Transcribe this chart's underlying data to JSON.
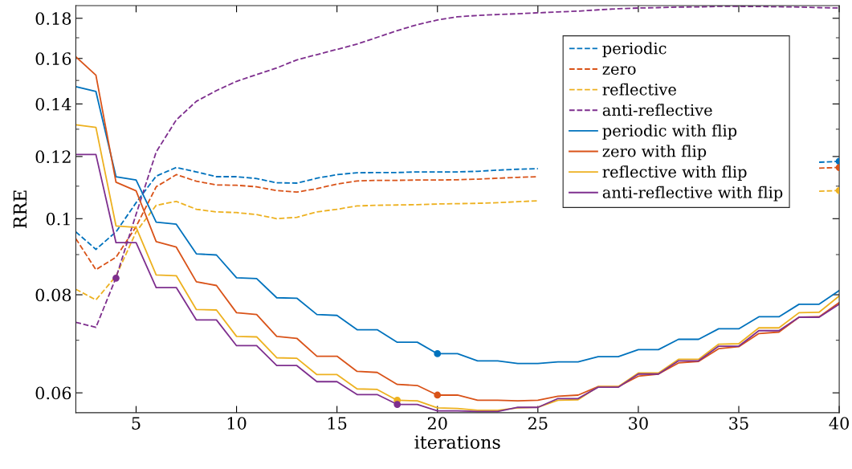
{
  "chart_data": {
    "type": "line",
    "xlabel": "iterations",
    "ylabel": "RRE",
    "log": "y",
    "x": [
      2,
      3,
      4,
      5,
      6,
      7,
      8,
      9,
      10,
      11,
      12,
      13,
      14,
      15,
      16,
      17,
      18,
      19,
      20,
      21,
      22,
      23,
      24,
      25,
      26,
      27,
      28,
      29,
      30,
      31,
      32,
      33,
      34,
      35,
      36,
      37,
      38,
      39,
      40
    ],
    "xlim": [
      2,
      40
    ],
    "xticks": [
      5,
      10,
      15,
      20,
      25,
      30,
      35,
      40
    ],
    "ylim": [
      0.0566,
      0.1868
    ],
    "yticks": [
      0.06,
      0.08,
      {
        "value": 0.1,
        "label": "0.1"
      },
      0.12,
      0.14,
      0.16,
      0.18
    ],
    "grid": false,
    "legend": "top right",
    "series": [
      {
        "name": "periodic",
        "color": "#0072bd",
        "line_style": "dashed",
        "values": [
          0.0962,
          0.0914,
          0.0962,
          0.1048,
          0.1133,
          0.1162,
          0.1147,
          0.1131,
          0.1131,
          0.1125,
          0.1111,
          0.111,
          0.1126,
          0.1138,
          0.1144,
          0.1145,
          0.1145,
          0.1147,
          0.1147,
          0.1147,
          0.1149,
          0.1153,
          0.1156,
          0.1158,
          null,
          null,
          null,
          null,
          null,
          null,
          null,
          null,
          null,
          null,
          null,
          null,
          null,
          0.118,
          0.1183
        ]
      },
      {
        "name": "zero",
        "color": "#d95319",
        "line_style": "dashed",
        "values": [
          0.0943,
          0.0861,
          0.0893,
          0.0977,
          0.1098,
          0.1138,
          0.1116,
          0.1104,
          0.1103,
          0.1098,
          0.1086,
          0.1081,
          0.1092,
          0.1107,
          0.1117,
          0.1119,
          0.1119,
          0.112,
          0.112,
          0.1121,
          0.1123,
          0.1126,
          0.1129,
          0.1131,
          null,
          null,
          null,
          null,
          null,
          null,
          null,
          null,
          null,
          null,
          null,
          null,
          null,
          0.116,
          0.1162
        ]
      },
      {
        "name": "reflective",
        "color": "#edb120",
        "line_style": "dashed",
        "values": [
          0.0813,
          0.0788,
          0.0845,
          0.0962,
          0.104,
          0.1052,
          0.1028,
          0.102,
          0.1018,
          0.1012,
          0.1,
          0.1004,
          0.102,
          0.1028,
          0.1038,
          0.104,
          0.1041,
          0.1042,
          0.1044,
          0.1045,
          0.1046,
          0.1048,
          0.1051,
          0.1054,
          null,
          null,
          null,
          null,
          null,
          null,
          null,
          null,
          null,
          null,
          null,
          null,
          null,
          0.1084,
          0.1086
        ]
      },
      {
        "name": "anti-reflective",
        "color": "#7e2f8e",
        "line_style": "dashed",
        "values": [
          0.0738,
          0.0727,
          0.0841,
          0.1013,
          0.1216,
          0.1336,
          0.1411,
          0.1456,
          0.1496,
          0.1526,
          0.1556,
          0.1593,
          0.1618,
          0.1643,
          0.1669,
          0.1702,
          0.1736,
          0.1767,
          0.1791,
          0.1808,
          0.1815,
          0.182,
          0.1824,
          0.1829,
          0.1834,
          0.1838,
          0.1845,
          0.1851,
          0.1855,
          0.1857,
          0.186,
          0.1861,
          0.1864,
          0.1864,
          0.1863,
          0.1862,
          0.186,
          0.1857,
          0.1855
        ]
      },
      {
        "name": "periodic with flip",
        "color": "#0072bd",
        "line_style": "solid",
        "values": [
          0.1473,
          0.1452,
          0.1131,
          0.112,
          0.099,
          0.0984,
          0.0902,
          0.0899,
          0.0841,
          0.0839,
          0.0793,
          0.0792,
          0.0755,
          0.0753,
          0.0722,
          0.0722,
          0.0696,
          0.0696,
          0.0673,
          0.0673,
          0.0659,
          0.0659,
          0.0654,
          0.0654,
          0.0657,
          0.0657,
          0.0667,
          0.0667,
          0.0681,
          0.0681,
          0.0702,
          0.0702,
          0.0724,
          0.0724,
          0.075,
          0.075,
          0.0778,
          0.0778,
          0.081
        ]
      },
      {
        "name": "zero with flip",
        "color": "#d95319",
        "line_style": "solid",
        "values": [
          0.1608,
          0.1523,
          0.1113,
          0.1085,
          0.0935,
          0.092,
          0.0831,
          0.0822,
          0.0759,
          0.0755,
          0.0708,
          0.0704,
          0.0668,
          0.0668,
          0.0639,
          0.0637,
          0.0615,
          0.0613,
          0.0596,
          0.0596,
          0.0587,
          0.0587,
          0.0586,
          0.0587,
          0.0594,
          0.0596,
          0.0611,
          0.0611,
          0.063,
          0.0634,
          0.0655,
          0.0658,
          0.0683,
          0.0687,
          0.0714,
          0.0717,
          0.0749,
          0.075,
          0.0782
        ]
      },
      {
        "name": "reflective with flip",
        "color": "#edb120",
        "line_style": "solid",
        "values": [
          0.1317,
          0.1307,
          0.0979,
          0.0975,
          0.0848,
          0.0846,
          0.0766,
          0.0765,
          0.0708,
          0.0707,
          0.0665,
          0.0664,
          0.0633,
          0.0633,
          0.0607,
          0.0606,
          0.0587,
          0.0586,
          0.0574,
          0.0573,
          0.057,
          0.057,
          0.0574,
          0.0575,
          0.0587,
          0.0588,
          0.0611,
          0.0611,
          0.0636,
          0.0636,
          0.0662,
          0.0662,
          0.0692,
          0.0693,
          0.0726,
          0.0726,
          0.0759,
          0.076,
          0.0797
        ]
      },
      {
        "name": "anti-reflective with flip",
        "color": "#7e2f8e",
        "line_style": "solid",
        "values": [
          0.1207,
          0.1207,
          0.0932,
          0.0932,
          0.0817,
          0.0817,
          0.0743,
          0.0743,
          0.0689,
          0.0689,
          0.065,
          0.065,
          0.062,
          0.062,
          0.0597,
          0.0597,
          0.058,
          0.058,
          0.0569,
          0.0569,
          0.0568,
          0.0568,
          0.0575,
          0.0575,
          0.059,
          0.059,
          0.061,
          0.061,
          0.0634,
          0.0634,
          0.0659,
          0.0659,
          0.0688,
          0.0688,
          0.072,
          0.072,
          0.0749,
          0.0749,
          0.0778
        ]
      },
      {
        "type": "scatter",
        "marker": "circle",
        "color": "#7e2f8e",
        "x": [
          4
        ],
        "values": [
          0.084
        ]
      },
      {
        "type": "scatter",
        "marker": "circle",
        "color": "#0072bd",
        "x": [
          20
        ],
        "values": [
          0.0673
        ]
      },
      {
        "type": "scatter",
        "marker": "circle",
        "color": "#d95319",
        "x": [
          20
        ],
        "values": [
          0.0596
        ]
      },
      {
        "type": "scatter",
        "marker": "circle",
        "color": "#edb120",
        "x": [
          18
        ],
        "values": [
          0.0587
        ]
      },
      {
        "type": "scatter",
        "marker": "circle",
        "color": "#7e2f8e",
        "x": [
          18
        ],
        "values": [
          0.058
        ]
      },
      {
        "type": "scatter",
        "marker": "circle",
        "color": "#0072bd",
        "x": [
          40
        ],
        "values": [
          0.1183
        ]
      },
      {
        "type": "scatter",
        "marker": "circle",
        "color": "#d95319",
        "x": [
          40
        ],
        "values": [
          0.1162
        ]
      },
      {
        "type": "scatter",
        "marker": "circle",
        "color": "#edb120",
        "x": [
          40
        ],
        "values": [
          0.1086
        ]
      }
    ]
  }
}
